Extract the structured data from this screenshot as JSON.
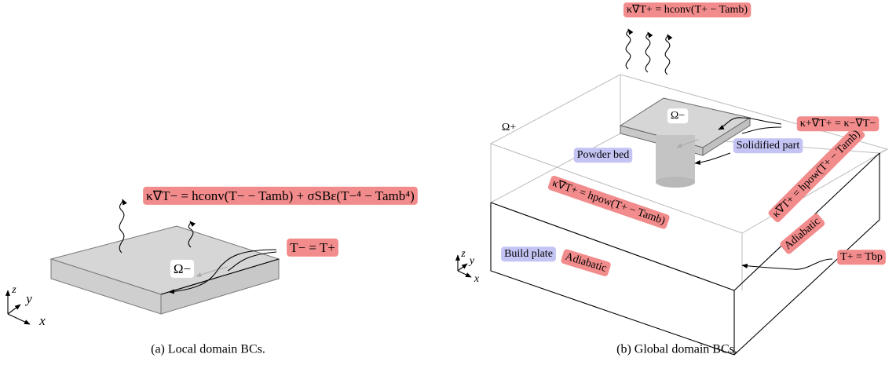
{
  "local": {
    "caption": "(a) Local domain BCs.",
    "top_bc": "κ∇T− = hconv(T− − Tamb) + σSBε(T−⁴ − Tamb⁴)",
    "interface_bc": "T− = T+",
    "domain": "Ω−",
    "axes": {
      "z": "z",
      "y": "y",
      "x": "x"
    }
  },
  "global": {
    "caption": "(b) Global domain BCs.",
    "top_bc": "κ∇T+ = hconv(T+ − Tamb)",
    "interface_bc": "κ+∇T+ = κ−∇T−",
    "inner_domain": "Ω−",
    "outer_domain": "Ω+",
    "powder_bed": "Powder bed",
    "solidified_part": "Solidified part",
    "front_bc": "κ∇T+ = hpow(T+ − Tamb)",
    "side_bc": "κ∇T+ = hpow(T+ − Tamb)",
    "adiabatic_front": "Adiabatic",
    "adiabatic_side": "Adiabatic",
    "build_plate": "Build plate",
    "bottom_bc": "T+ = Tbp",
    "axes": {
      "z": "z",
      "y": "y",
      "x": "x"
    }
  }
}
